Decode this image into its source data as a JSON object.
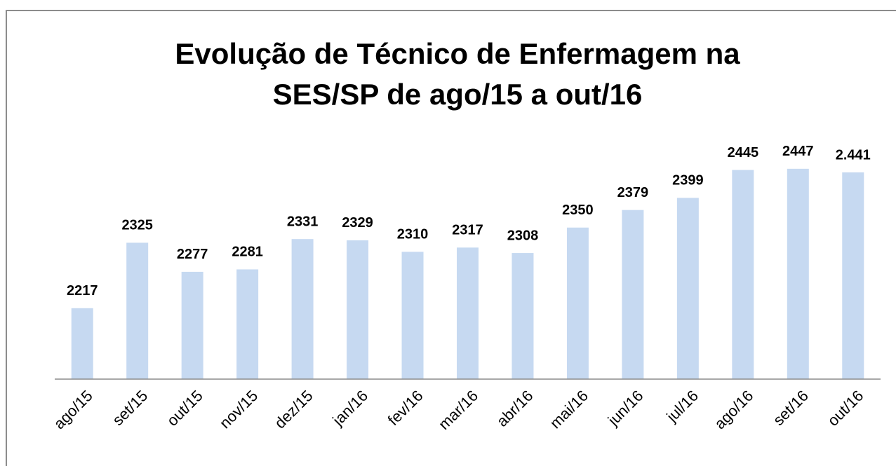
{
  "chart_data": {
    "type": "bar",
    "title": "Evolução de Técnico de Enfermagem na SES/SP de ago/15 a out/16",
    "categories": [
      "ago/15",
      "set/15",
      "out/15",
      "nov/15",
      "dez/15",
      "jan/16",
      "fev/16",
      "mar/16",
      "abr/16",
      "mai/16",
      "jun/16",
      "jul/16",
      "ago/16",
      "set/16",
      "out/16"
    ],
    "values": [
      2217,
      2325,
      2277,
      2281,
      2331,
      2329,
      2310,
      2317,
      2308,
      2350,
      2379,
      2399,
      2445,
      2447,
      2441
    ],
    "value_labels": [
      "2217",
      "2325",
      "2277",
      "2281",
      "2331",
      "2329",
      "2310",
      "2317",
      "2308",
      "2350",
      "2379",
      "2399",
      "2445",
      "2447",
      "2.441"
    ],
    "color": "#c6d9f1",
    "ylim": [
      2100,
      2500
    ]
  }
}
